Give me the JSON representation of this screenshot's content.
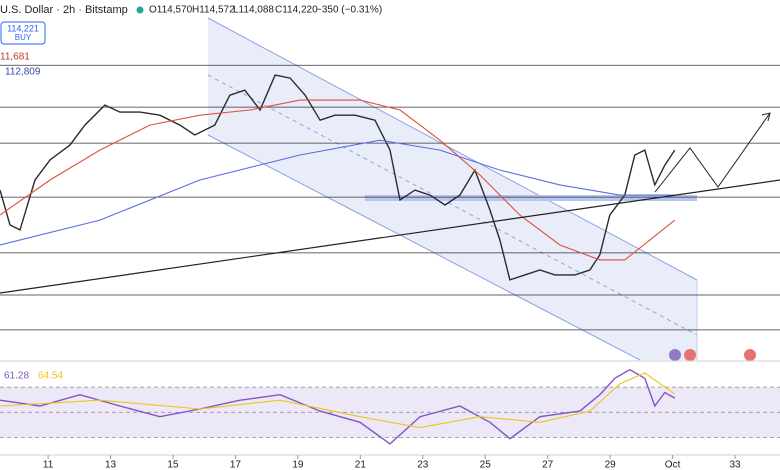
{
  "header": {
    "title": "U.S. Dollar · 2h · Bitstamp",
    "ohlc": [
      "O114,570",
      "H114,572",
      "L114,088",
      "C114,220",
      "−350 (−0.31%)"
    ],
    "buy_price": "114,221",
    "buy": "BUY",
    "labels": [
      "11,681",
      "112,809"
    ]
  },
  "chart_data": [
    {
      "type": "line",
      "xlim": [
        9.46,
        34.44
      ],
      "ylim": [
        104890,
        120890
      ],
      "xticks": [
        11,
        13,
        15,
        17,
        19,
        21,
        23,
        25,
        27,
        29,
        {
          "value": 31,
          "label": "Oct"
        },
        33
      ],
      "hlines": [
        117990,
        116130,
        114530,
        112130,
        109650,
        107780,
        106230
      ],
      "series": [
        {
          "color": "#2b2b2b",
          "x": [
            9.46,
            9.78,
            10.1,
            10.58,
            11.06,
            11.7,
            12.18,
            12.82,
            13.3,
            13.94,
            14.58,
            15.22,
            15.7,
            16.34,
            16.82,
            17.3,
            17.79,
            18.27,
            18.75,
            19.23,
            19.71,
            20.19,
            20.83,
            21.47,
            21.95,
            22.27,
            22.75,
            23.23,
            23.71,
            24.19,
            24.67,
            25.15,
            25.47,
            25.79,
            26.27,
            26.75,
            27.23,
            27.87,
            28.35,
            28.67,
            28.99,
            29.47,
            29.79,
            30.11,
            30.43,
            30.75,
            31.07
          ],
          "values": [
            112440,
            110890,
            110670,
            112890,
            113780,
            114440,
            115330,
            116220,
            115910,
            115910,
            115770,
            115330,
            114890,
            115330,
            116660,
            116880,
            116000,
            117550,
            117420,
            116660,
            115550,
            115770,
            115770,
            115550,
            114220,
            112000,
            112440,
            112220,
            111780,
            112220,
            113330,
            111560,
            110220,
            108450,
            108670,
            108890,
            108670,
            108670,
            108890,
            109560,
            111330,
            112220,
            114000,
            114220,
            112670,
            113550,
            114220
          ]
        },
        {
          "color": "#e0503f",
          "x": [
            9.46,
            11.06,
            12.66,
            14.26,
            15.86,
            17.47,
            19.07,
            20.99,
            22.27,
            23.55,
            24.83,
            26.11,
            27.39,
            28.67,
            29.47,
            30.27,
            31.07
          ],
          "values": [
            111330,
            112890,
            114220,
            115330,
            115770,
            116000,
            116440,
            116440,
            116000,
            114660,
            113110,
            111330,
            110000,
            109340,
            109340,
            110220,
            111110
          ]
        },
        {
          "color": "#5b6ee1",
          "x": [
            9.46,
            12.66,
            15.86,
            19.07,
            21.63,
            23.55,
            25.47,
            27.39,
            29.31,
            31.07
          ],
          "values": [
            110000,
            111110,
            112890,
            114000,
            114660,
            114220,
            113330,
            112670,
            112220,
            112220
          ]
        }
      ]
    },
    {
      "type": "line",
      "ylim": [
        16,
        90
      ],
      "levels": [
        70,
        50,
        30
      ],
      "series": [
        {
          "color": "#7e57c2",
          "x": [
            9.46,
            10.74,
            12.02,
            13.3,
            14.58,
            15.86,
            17.15,
            18.43,
            19.71,
            20.99,
            21.95,
            22.91,
            24.19,
            25.15,
            25.79,
            26.75,
            28.03,
            28.67,
            29.15,
            29.63,
            30.11,
            30.43,
            30.75,
            31.07
          ],
          "values": [
            59.6,
            55,
            64,
            55,
            46.5,
            52.6,
            59.6,
            64,
            50.9,
            42,
            24.8,
            46.5,
            55,
            42,
            29,
            46.5,
            50.9,
            64,
            77,
            83.9,
            77,
            55,
            65.7,
            61.28
          ]
        },
        {
          "color": "#f0c419",
          "x": [
            9.46,
            12.66,
            15.86,
            18.43,
            20.99,
            22.91,
            24.83,
            26.75,
            28.35,
            29.31,
            30.11,
            31.07
          ],
          "values": [
            55,
            59.6,
            52.6,
            59.6,
            46.5,
            37.8,
            46.5,
            42,
            50.9,
            72.6,
            81.3,
            64.54
          ]
        }
      ]
    }
  ]
}
